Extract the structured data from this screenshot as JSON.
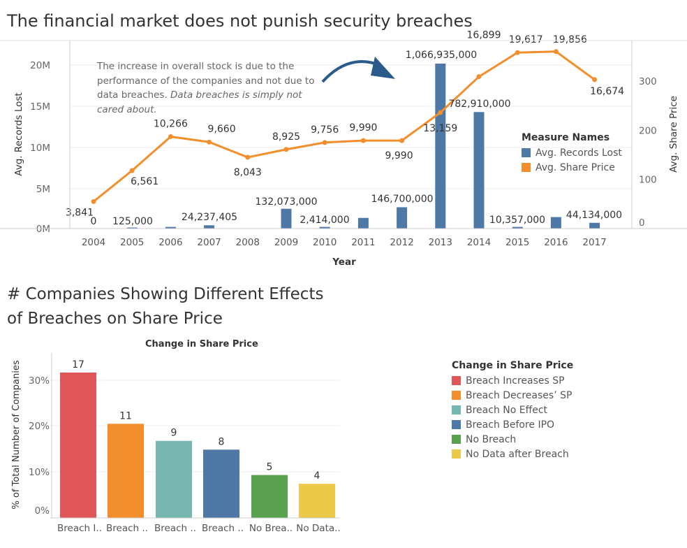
{
  "title": "The financial market does not punish security breaches",
  "annotation": {
    "normal": "The increase in overall stock is due to the performance of the companies and not due to data breaches.",
    "italic": "Data breaches is simply not cared about."
  },
  "legend1": {
    "title": "Measure Names",
    "items": [
      {
        "label": "Avg. Records Lost",
        "color": "#4e79a7"
      },
      {
        "label": "Avg. Share Price",
        "color": "#f28e2b"
      }
    ]
  },
  "chart2_title": "# Companies Showing Different Effects of Breaches on Share Price",
  "chart2_subtitle": "Change in Share Price",
  "legend2": {
    "title": "Change in Share Price",
    "items": [
      {
        "label": "Breach Increases SP",
        "color": "#e15759"
      },
      {
        "label": "Breach Decreases’ SP",
        "color": "#f28e2b"
      },
      {
        "label": "Breach No Effect",
        "color": "#76b7b2"
      },
      {
        "label": "Breach Before IPO",
        "color": "#4e79a7"
      },
      {
        "label": "No Breach",
        "color": "#59a14f"
      },
      {
        "label": "No Data after Breach",
        "color": "#edc948"
      }
    ]
  },
  "chart_data": [
    {
      "type": "bar+line",
      "title": "The financial market does not punish security breaches",
      "xlabel": "Year",
      "ylabel_left": "Avg. Records Lost",
      "ylabel_right": "Avg. Share Price",
      "x": [
        "2004",
        "2005",
        "2006",
        "2007",
        "2008",
        "2009",
        "2010",
        "2011",
        "2012",
        "2013",
        "2014",
        "2015",
        "2016",
        "2017"
      ],
      "ylim_left": [
        0,
        22000000
      ],
      "yticks_left": [
        0,
        5000000,
        10000000,
        15000000,
        20000000
      ],
      "yticklabels_left": [
        "0M",
        "5M",
        "10M",
        "15M",
        "20M"
      ],
      "ylim_right": [
        0,
        380
      ],
      "yticks_right": [
        0,
        100,
        200,
        300
      ],
      "yticklabels_right": [
        "0",
        "100",
        "200",
        "300"
      ],
      "series": [
        {
          "name": "Avg. Records Lost",
          "kind": "bar",
          "color": "#4e79a7",
          "values": [
            0,
            125000,
            200000,
            400000,
            0,
            2414000,
            200000,
            1300000,
            2600000,
            20100000,
            14200000,
            200000,
            1400000,
            700000
          ],
          "labels": [
            "0",
            "125,000",
            "",
            "24,237,405",
            "",
            "132,073,000",
            "2,414,000",
            "",
            "146,700,000",
            "1,066,935,000",
            "782,910,000",
            "10,357,000",
            "",
            "44,134,000"
          ]
        },
        {
          "name": "Avg. Share Price",
          "kind": "line",
          "color": "#f28e2b",
          "values": [
            55,
            118,
            187,
            176,
            145,
            161,
            175,
            179,
            179,
            236,
            309,
            358,
            360,
            303
          ],
          "labels": [
            "3,841",
            "6,561",
            "10,266",
            "9,660",
            "8,043",
            "8,925",
            "9,756",
            "9,990",
            "9,990",
            "13,159",
            "16,899",
            "19,617",
            "19,856",
            "16,674"
          ]
        }
      ]
    },
    {
      "type": "bar",
      "title": "Change in Share Price",
      "ylabel": "% of Total Number of Companies",
      "categories": [
        "Breach I..",
        "Breach ..",
        "Breach ..",
        "Breach ..",
        "No Brea..",
        "No Data.."
      ],
      "full_categories": [
        "Breach Increases SP",
        "Breach Decreases’ SP",
        "Breach No Effect",
        "Breach Before IPO",
        "No Breach",
        "No Data after Breach"
      ],
      "values": [
        17,
        11,
        9,
        8,
        5,
        4
      ],
      "percent": [
        31.5,
        20.4,
        16.7,
        14.8,
        9.3,
        7.4
      ],
      "colors": [
        "#e15759",
        "#f28e2b",
        "#76b7b2",
        "#4e79a7",
        "#59a14f",
        "#edc948"
      ],
      "ylim": [
        0,
        35
      ],
      "yticks": [
        0,
        10,
        20,
        30
      ],
      "yticklabels": [
        "0%",
        "10%",
        "20%",
        "30%"
      ]
    }
  ]
}
